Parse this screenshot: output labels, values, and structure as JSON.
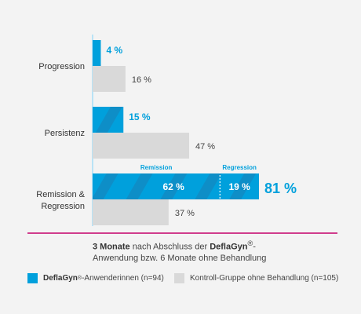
{
  "chart_data": {
    "type": "bar",
    "orientation": "horizontal",
    "categories": [
      "Progression",
      "Persistenz",
      "Remission &\nRegression"
    ],
    "series": [
      {
        "name": "DeflaGyn®-Anwenderinnen (n=94)",
        "values": [
          4,
          15,
          81
        ],
        "labels": [
          "4 %",
          "15 %",
          "81 %"
        ]
      },
      {
        "name": "Kontroll-Gruppe ohne Behandlung (n=105)",
        "values": [
          16,
          47,
          37
        ],
        "labels": [
          "16 %",
          "47 %",
          "37 %"
        ]
      }
    ],
    "breakdown": {
      "category": "Remission &\nRegression",
      "segments": [
        {
          "name": "Remission",
          "value": 62,
          "label": "62 %"
        },
        {
          "name": "Regression",
          "value": 19,
          "label": "19 %"
        }
      ]
    },
    "xlim": [
      0,
      81
    ],
    "grid": false,
    "legend_position": "bottom",
    "colors": {
      "treatment": "#00a0dc",
      "treatment_stripe": "#0e8ec7",
      "control": "#d9d9d9",
      "divider": "#c4006b",
      "axis": "#b9e3f6",
      "label_treatment": "#00a0dc",
      "label_control": "#444444"
    }
  },
  "caption": {
    "part1": "3 Monate",
    "part2": " nach Abschluss der ",
    "brand": "DeflaGyn",
    "reg": "®",
    "part3": "-",
    "line2": "Anwendung bzw. 6 Monate ohne Behandlung"
  },
  "legend": {
    "treatment_brand": "DeflaGyn",
    "treatment_reg": "®",
    "treatment_rest": "-Anwenderinnen (n=94)",
    "control_label": "Kontroll-Gruppe ohne Behandlung (n=105)"
  }
}
